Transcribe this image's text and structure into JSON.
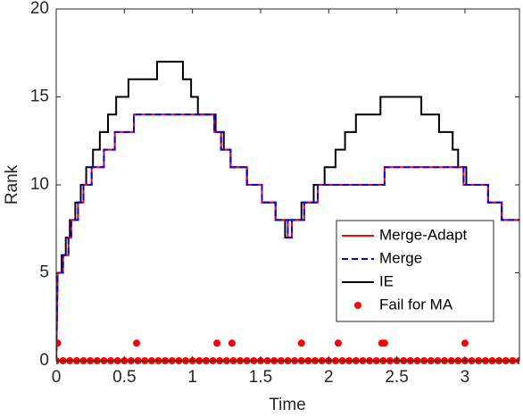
{
  "chart_data": {
    "type": "line",
    "xlabel": "Time",
    "ylabel": "Rank",
    "xlim": [
      0,
      3.4
    ],
    "ylim": [
      0,
      20
    ],
    "xticks": [
      0,
      0.5,
      1,
      1.5,
      2,
      2.5,
      3
    ],
    "yticks": [
      0,
      5,
      10,
      15,
      20
    ],
    "grid": false,
    "legend": "southeast",
    "series": [
      {
        "name": "Merge-Adapt",
        "color": "#ff0000",
        "style": "solid",
        "x": [
          0,
          0.01,
          0.05,
          0.05,
          0.09,
          0.09,
          0.11,
          0.11,
          0.16,
          0.16,
          0.2,
          0.2,
          0.26,
          0.26,
          0.35,
          0.35,
          0.43,
          0.43,
          0.57,
          0.57,
          1.16,
          1.16,
          1.21,
          1.21,
          1.28,
          1.28,
          1.4,
          1.4,
          1.51,
          1.51,
          1.61,
          1.61,
          1.7,
          1.7,
          1.73,
          1.73,
          1.82,
          1.82,
          1.92,
          1.92,
          2.41,
          2.41,
          2.99,
          2.99,
          3.17,
          3.17,
          3.27,
          3.27,
          3.4
        ],
        "values": [
          0,
          5,
          5,
          6,
          6,
          7,
          7,
          8,
          8,
          9,
          9,
          10,
          10,
          11,
          11,
          12,
          12,
          13,
          13,
          14,
          14,
          13,
          13,
          12,
          12,
          11,
          11,
          10,
          10,
          9,
          9,
          8,
          8,
          7,
          7,
          8,
          8,
          9,
          9,
          10,
          10,
          11,
          11,
          10,
          10,
          9,
          9,
          8,
          8
        ]
      },
      {
        "name": "Merge",
        "color": "#0000ff",
        "style": "dashed",
        "x": [
          0,
          0.01,
          0.05,
          0.05,
          0.09,
          0.09,
          0.11,
          0.11,
          0.16,
          0.16,
          0.2,
          0.2,
          0.26,
          0.26,
          0.35,
          0.35,
          0.43,
          0.43,
          0.57,
          0.57,
          1.16,
          1.16,
          1.21,
          1.21,
          1.28,
          1.28,
          1.4,
          1.4,
          1.51,
          1.51,
          1.61,
          1.61,
          1.7,
          1.7,
          1.73,
          1.73,
          1.82,
          1.82,
          1.92,
          1.92,
          2.41,
          2.41,
          2.99,
          2.99,
          3.17,
          3.17,
          3.27,
          3.27,
          3.4
        ],
        "values": [
          0,
          5,
          5,
          6,
          6,
          7,
          7,
          8,
          8,
          9,
          9,
          10,
          10,
          11,
          11,
          12,
          12,
          13,
          13,
          14,
          14,
          13,
          13,
          12,
          12,
          11,
          11,
          10,
          10,
          9,
          9,
          8,
          8,
          7,
          7,
          8,
          8,
          9,
          9,
          10,
          10,
          11,
          11,
          10,
          10,
          9,
          9,
          8,
          8
        ]
      },
      {
        "name": "IE",
        "color": "#000000",
        "style": "solid",
        "x": [
          0,
          0.01,
          0.04,
          0.04,
          0.07,
          0.07,
          0.1,
          0.1,
          0.14,
          0.14,
          0.18,
          0.18,
          0.22,
          0.22,
          0.27,
          0.27,
          0.32,
          0.32,
          0.38,
          0.38,
          0.44,
          0.44,
          0.53,
          0.53,
          0.74,
          0.74,
          0.93,
          0.93,
          0.99,
          0.99,
          1.04,
          1.04,
          1.17,
          1.17,
          1.23,
          1.23,
          1.28,
          1.28,
          1.4,
          1.4,
          1.51,
          1.51,
          1.61,
          1.61,
          1.68,
          1.68,
          1.7,
          1.7,
          1.8,
          1.8,
          1.89,
          1.89,
          1.97,
          1.97,
          2.05,
          2.05,
          2.12,
          2.12,
          2.2,
          2.2,
          2.38,
          2.38,
          2.68,
          2.68,
          2.81,
          2.81,
          2.91,
          2.91,
          2.95,
          2.95,
          3.01,
          3.01,
          3.17,
          3.17,
          3.27,
          3.27,
          3.4
        ],
        "values": [
          0,
          5,
          5,
          6,
          6,
          7,
          7,
          8,
          8,
          9,
          9,
          10,
          10,
          11,
          11,
          12,
          12,
          13,
          13,
          14,
          14,
          15,
          15,
          16,
          16,
          17,
          17,
          16,
          16,
          15,
          15,
          14,
          14,
          13,
          13,
          12,
          12,
          11,
          11,
          10,
          10,
          9,
          9,
          8,
          8,
          7,
          7,
          8,
          8,
          9,
          9,
          10,
          10,
          11,
          11,
          12,
          12,
          13,
          13,
          14,
          14,
          15,
          15,
          14,
          14,
          13,
          13,
          12,
          12,
          11,
          11,
          10,
          10,
          9,
          9,
          8,
          8
        ]
      },
      {
        "name": "Fail for MA",
        "color": "#ff0000",
        "style": "markers",
        "x": [
          0,
          0.05,
          0.1,
          0.15,
          0.2,
          0.25,
          0.3,
          0.35,
          0.4,
          0.45,
          0.5,
          0.55,
          0.6,
          0.65,
          0.7,
          0.75,
          0.8,
          0.85,
          0.9,
          0.95,
          1,
          1.05,
          1.1,
          1.15,
          1.2,
          1.25,
          1.3,
          1.35,
          1.4,
          1.45,
          1.5,
          1.55,
          1.6,
          1.65,
          1.7,
          1.75,
          1.8,
          1.85,
          1.9,
          1.95,
          2,
          2.05,
          2.1,
          2.15,
          2.2,
          2.25,
          2.3,
          2.35,
          2.4,
          2.45,
          2.5,
          2.55,
          2.6,
          2.65,
          2.7,
          2.75,
          2.8,
          2.85,
          2.9,
          2.95,
          3,
          3.05,
          3.1,
          3.15,
          3.2,
          3.25,
          3.3,
          3.35,
          3.4,
          0.01,
          0.59,
          1.18,
          1.29,
          1.8,
          2.07,
          2.39,
          2.41,
          3.0
        ],
        "values": [
          0,
          0,
          0,
          0,
          0,
          0,
          0,
          0,
          0,
          0,
          0,
          0,
          0,
          0,
          0,
          0,
          0,
          0,
          0,
          0,
          0,
          0,
          0,
          0,
          0,
          0,
          0,
          0,
          0,
          0,
          0,
          0,
          0,
          0,
          0,
          0,
          0,
          0,
          0,
          0,
          0,
          0,
          0,
          0,
          0,
          0,
          0,
          0,
          0,
          0,
          0,
          0,
          0,
          0,
          0,
          0,
          0,
          0,
          0,
          0,
          0,
          0,
          0,
          0,
          0,
          0,
          0,
          0,
          0,
          1,
          1,
          1,
          1,
          1,
          1,
          1,
          1,
          1
        ]
      }
    ]
  }
}
